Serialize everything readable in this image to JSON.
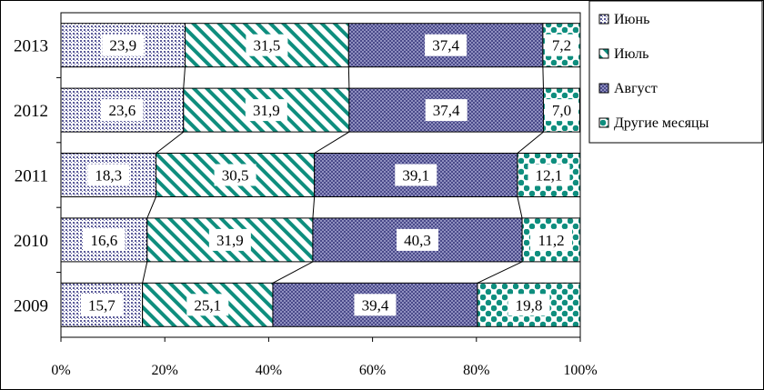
{
  "chart_data": {
    "type": "bar",
    "orientation": "horizontal",
    "stacked": "percent",
    "categories": [
      "2013",
      "2012",
      "2011",
      "2010",
      "2009"
    ],
    "series": [
      {
        "name": "Июнь",
        "values": [
          23.9,
          23.6,
          18.3,
          16.6,
          15.7
        ],
        "labels": [
          "23,9",
          "23,6",
          "18,3",
          "16,6",
          "15,7"
        ],
        "color": "#5b5b99",
        "pattern": "dotted-grid"
      },
      {
        "name": "Июль",
        "values": [
          31.5,
          31.9,
          30.5,
          31.9,
          25.1
        ],
        "labels": [
          "31,5",
          "31,9",
          "30,5",
          "31,9",
          "25,1"
        ],
        "color": "#0e8e7e",
        "pattern": "diagonal-stripes"
      },
      {
        "name": "Август",
        "values": [
          37.4,
          37.4,
          39.1,
          40.3,
          39.4
        ],
        "labels": [
          "37,4",
          "37,4",
          "39,1",
          "40,3",
          "39,4"
        ],
        "color": "#5b5b99",
        "pattern": "checker"
      },
      {
        "name": "Другие месяцы",
        "values": [
          7.2,
          7.0,
          12.1,
          11.2,
          19.8
        ],
        "labels": [
          "7,2",
          "7,0",
          "12,1",
          "11,2",
          "19,8"
        ],
        "color": "#0e8e7e",
        "pattern": "dots"
      }
    ],
    "xaxis": {
      "ticks": [
        0,
        20,
        40,
        60,
        80,
        100
      ],
      "tick_labels": [
        "0%",
        "20%",
        "40%",
        "60%",
        "80%",
        "100%"
      ],
      "range": [
        0,
        100
      ]
    },
    "series_lines": true,
    "legend": "top-right",
    "grid": false,
    "title": "",
    "xlabel": "",
    "ylabel": ""
  }
}
